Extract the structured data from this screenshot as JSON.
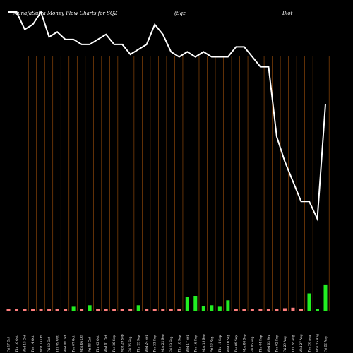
{
  "chart_data": {
    "type": "bar",
    "title": "MunafaSutra  Money Flow  Charts for SQZ",
    "subtitle": "(Sqz",
    "subtitle_right": "Biot",
    "grid": true,
    "colors": {
      "background": "#000000",
      "grid": "#a0500a",
      "line": "#ffffff",
      "bar_up": "#22ee22",
      "bar_down": "#ff7f7f"
    },
    "line_ylim": [
      0,
      100
    ],
    "bar_ylim": [
      0,
      100
    ],
    "categories": [
      "Fri 17 Oct",
      "Thu 16 Oct",
      "Wed 15 Oct",
      "Tue 14 Oct",
      "Mon 13 Oct",
      "Fri 10 Oct",
      "Thu 09 Oct",
      "Wed 08 Oct",
      "Tue 07 Oct",
      "Mon 06 Oct",
      "Fri 03 Oct",
      "Thu 02 Oct",
      "Wed 01 Oct",
      "Tue 30 Sep",
      "Mon 29 Sep",
      "Fri 26 Sep",
      "Thu 25 Sep",
      "Wed 24 Sep",
      "Tue 23 Sep",
      "Mon 22 Sep",
      "Fri 19 Sep",
      "Thu 18 Sep",
      "Wed 17 Sep",
      "Tue 16 Sep",
      "Mon 15 Sep",
      "Fri 12 Sep",
      "Thu 11 Sep",
      "Wed 10 Sep",
      "Tue 09 Sep",
      "Mon 08 Sep",
      "Fri 05 Sep",
      "Thu 04 Sep",
      "Wed 03 Sep",
      "Tue 02 Sep",
      "Fri 29 Aug",
      "Thu 28 Aug",
      "Wed 27 Aug",
      "Tue 26 Aug",
      "Mon 25 Aug",
      "Fri 22 Aug"
    ],
    "series": [
      {
        "kind": "line",
        "values": [
          100,
          100,
          93,
          95,
          100,
          90,
          92,
          89,
          89,
          87,
          87,
          89,
          91,
          87,
          87,
          83,
          85,
          87,
          95,
          91,
          84,
          82,
          84,
          82,
          84,
          82,
          82,
          82,
          86,
          86,
          82,
          78,
          78,
          50,
          40,
          32,
          24,
          24,
          17,
          63
        ]
      },
      {
        "kind": "bar",
        "values": [
          0.8,
          0.8,
          0.6,
          0.6,
          0.6,
          0.6,
          0.6,
          0.6,
          1.6,
          0.6,
          2.2,
          0.6,
          0.6,
          0.6,
          0.6,
          0.6,
          2.2,
          0.6,
          0.6,
          0.6,
          0.6,
          0.6,
          5.6,
          6.0,
          2.0,
          2.2,
          1.6,
          4.2,
          0.6,
          0.6,
          0.6,
          0.6,
          0.6,
          0.6,
          1.0,
          1.2,
          0.8,
          7.0,
          0.8,
          10.6
        ],
        "direction": [
          "down",
          "down",
          "down",
          "down",
          "down",
          "down",
          "down",
          "down",
          "up",
          "down",
          "up",
          "down",
          "down",
          "down",
          "down",
          "down",
          "up",
          "down",
          "down",
          "down",
          "down",
          "down",
          "up",
          "up",
          "up",
          "up",
          "up",
          "up",
          "down",
          "down",
          "down",
          "down",
          "down",
          "down",
          "down",
          "down",
          "down",
          "up",
          "up",
          "up"
        ]
      }
    ]
  }
}
